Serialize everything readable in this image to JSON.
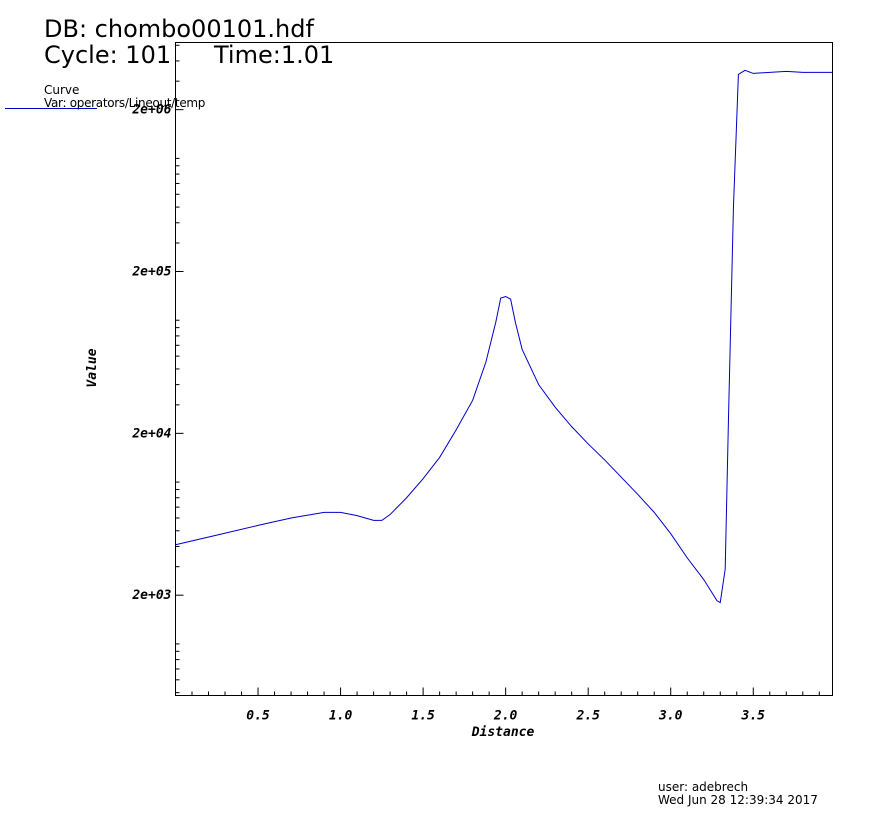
{
  "header": {
    "db_label": "DB: chombo00101.hdf",
    "cycle_label": "Cycle: 101",
    "time_label": "Time:1.01"
  },
  "legend": {
    "title": "Curve",
    "var_label": "Var: operators/Lineout/temp"
  },
  "footer": {
    "user": "user: adebrech",
    "timestamp": "Wed Jun 28 12:39:34 2017"
  },
  "colors": {
    "curve": "#0000c8",
    "axis": "#000000",
    "background": "#ffffff"
  },
  "chart_data": {
    "type": "line",
    "xlabel": "Distance",
    "ylabel": "Value",
    "yscale": "log",
    "grid": false,
    "legend_placement": "top-left",
    "xlim": [
      0.0,
      3.98
    ],
    "ylim": [
      480,
      5200000
    ],
    "x_ticks": [
      0.5,
      1.0,
      1.5,
      2.0,
      2.5,
      3.0,
      3.5
    ],
    "x_tick_labels": [
      "0.5",
      "1.0",
      "1.5",
      "2.0",
      "2.5",
      "3.0",
      "3.5"
    ],
    "y_ticks": [
      2000,
      20000,
      200000,
      2000000
    ],
    "y_tick_labels": [
      "2e+03",
      "2e+04",
      "2e+05",
      "2e+06"
    ],
    "series": [
      {
        "x": [
          0.0,
          0.25,
          0.5,
          0.7,
          0.9,
          1.0,
          1.1,
          1.2,
          1.25,
          1.3,
          1.4,
          1.5,
          1.6,
          1.7,
          1.8,
          1.88,
          1.94,
          1.97,
          2.0,
          2.03,
          2.06,
          2.1,
          2.2,
          2.3,
          2.4,
          2.5,
          2.6,
          2.8,
          2.9,
          3.0,
          3.1,
          3.2,
          3.28,
          3.3,
          3.33,
          3.35,
          3.38,
          3.41,
          3.45,
          3.5,
          3.6,
          3.7,
          3.8,
          3.98
        ],
        "y": [
          4100,
          4700,
          5400,
          6000,
          6500,
          6500,
          6200,
          5800,
          5800,
          6300,
          8000,
          10500,
          14200,
          21000,
          32000,
          55000,
          97000,
          137000,
          140000,
          135000,
          96000,
          66000,
          40000,
          29000,
          22000,
          17200,
          13700,
          8400,
          6500,
          4800,
          3400,
          2500,
          1850,
          1800,
          2900,
          25000,
          500000,
          3300000,
          3500000,
          3350000,
          3400000,
          3450000,
          3400000,
          3400000
        ]
      }
    ]
  }
}
